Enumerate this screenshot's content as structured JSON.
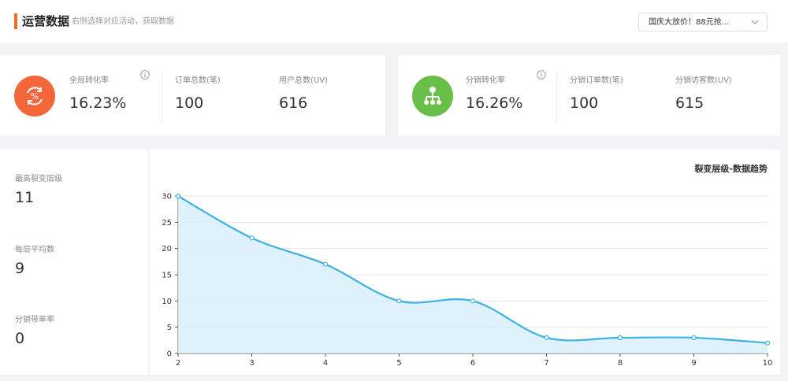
{
  "header": {
    "title": "运营数据",
    "hint": "右侧选择对应活动，获取数据",
    "activity_select": "国庆大放价！88元抢..."
  },
  "overview": {
    "global": {
      "icon": "percent-cycle-icon",
      "icon_color": "#f4673a",
      "conversion_label": "全局转化率",
      "conversion_value": "16.23%",
      "orders_label": "订单总数(笔)",
      "orders_value": "100",
      "users_label": "用户总数(UV)",
      "users_value": "616"
    },
    "distribution": {
      "icon": "hierarchy-icon",
      "icon_color": "#6abf4b",
      "conversion_label": "分销转化率",
      "conversion_value": "16.26%",
      "orders_label": "分销订单数(笔)",
      "orders_value": "100",
      "visitors_label": "分销访客数(UV)",
      "visitors_value": "615"
    }
  },
  "fission": {
    "max_level_label": "最高裂变层级",
    "max_level_value": "11",
    "avg_per_level_label": "每层平均数",
    "avg_per_level_value": "9",
    "distribution_rate_label": "分销带单率",
    "distribution_rate_value": "0"
  },
  "chart_data": {
    "type": "area",
    "title": "裂变层级-数据趋势",
    "x": [
      2,
      3,
      4,
      5,
      6,
      7,
      8,
      9,
      10
    ],
    "series": [
      {
        "values": [
          30,
          22,
          17,
          10,
          10,
          3,
          3,
          3,
          2
        ]
      }
    ],
    "xlim": [
      2,
      10
    ],
    "ylim": [
      0,
      30
    ],
    "yticks": [
      0,
      5,
      10,
      15,
      20,
      25,
      30
    ],
    "grid": true,
    "smooth": true,
    "line_color": "#3db3e3",
    "fill_color": "#d9eef9"
  }
}
